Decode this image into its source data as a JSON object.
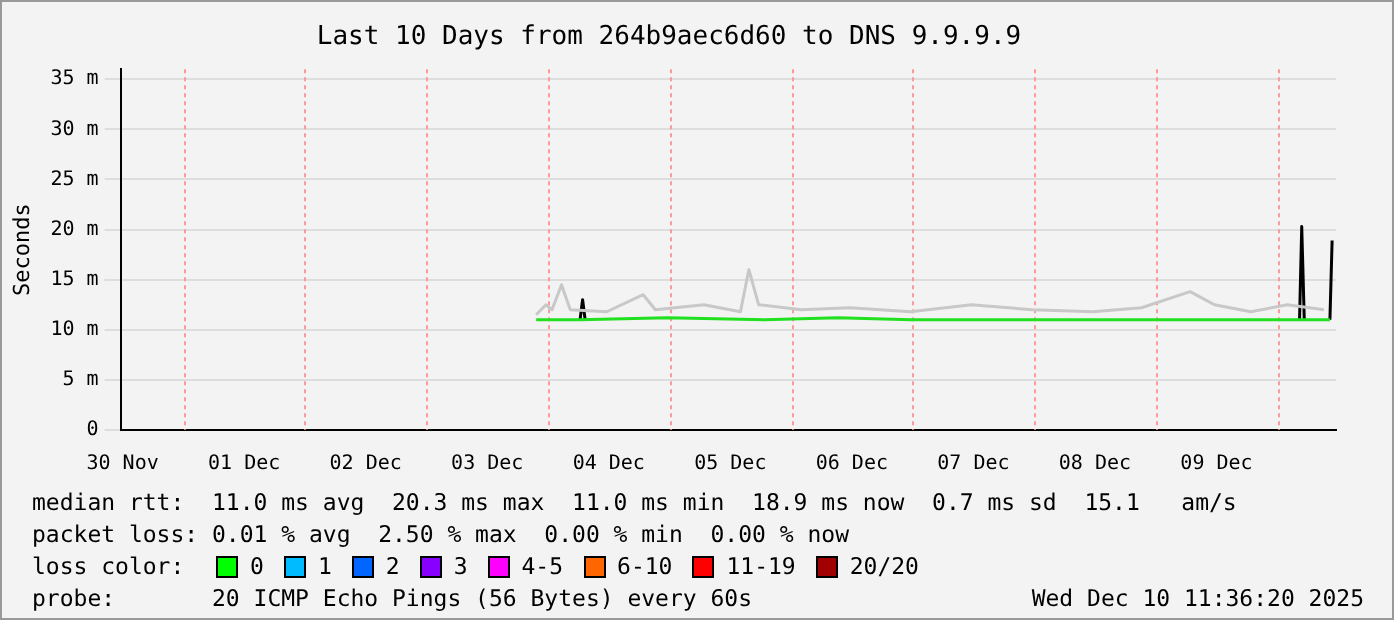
{
  "chart_data": {
    "type": "line",
    "title": "Last 10 Days from 264b9aec6d60 to DNS 9.9.9.9",
    "ylabel": "Seconds",
    "xlim": [
      "2025-11-30T11:36",
      "2025-12-10T11:36"
    ],
    "xticks": [
      {
        "value": "2025-11-30T12:00",
        "label": "30 Nov"
      },
      {
        "value": "2025-12-01T12:00",
        "label": "01 Dec"
      },
      {
        "value": "2025-12-02T12:00",
        "label": "02 Dec"
      },
      {
        "value": "2025-12-03T12:00",
        "label": "03 Dec"
      },
      {
        "value": "2025-12-04T12:00",
        "label": "04 Dec"
      },
      {
        "value": "2025-12-05T12:00",
        "label": "05 Dec"
      },
      {
        "value": "2025-12-06T12:00",
        "label": "06 Dec"
      },
      {
        "value": "2025-12-07T12:00",
        "label": "07 Dec"
      },
      {
        "value": "2025-12-08T12:00",
        "label": "08 Dec"
      },
      {
        "value": "2025-12-09T12:00",
        "label": "09 Dec"
      }
    ],
    "ylim": [
      0,
      36
    ],
    "yticks": [
      0,
      {
        "value": 5,
        "label": "5 m"
      },
      {
        "value": 10,
        "label": "10 m"
      },
      {
        "value": 15,
        "label": "15 m"
      },
      {
        "value": 20,
        "label": "20 m"
      },
      {
        "value": 25,
        "label": "25 m"
      },
      {
        "value": 30,
        "label": "30 m"
      },
      {
        "value": 35,
        "label": "35 m"
      }
    ],
    "grid": "y",
    "legend": false,
    "marker": "none",
    "line_style": "solid",
    "ref_lines": [
      {
        "axis": "x",
        "value": "2025-12-01T00:00",
        "color": "#ff9999",
        "line_style": "dotted"
      },
      {
        "axis": "x",
        "value": "2025-12-02T00:00",
        "color": "#ff9999",
        "line_style": "dotted"
      },
      {
        "axis": "x",
        "value": "2025-12-03T00:00",
        "color": "#ff9999",
        "line_style": "dotted"
      },
      {
        "axis": "x",
        "value": "2025-12-04T00:00",
        "color": "#ff9999",
        "line_style": "dotted"
      },
      {
        "axis": "x",
        "value": "2025-12-05T00:00",
        "color": "#ff9999",
        "line_style": "dotted"
      },
      {
        "axis": "x",
        "value": "2025-12-06T00:00",
        "color": "#ff9999",
        "line_style": "dotted"
      },
      {
        "axis": "x",
        "value": "2025-12-07T00:00",
        "color": "#ff9999",
        "line_style": "dotted"
      },
      {
        "axis": "x",
        "value": "2025-12-08T00:00",
        "color": "#ff9999",
        "line_style": "dotted"
      },
      {
        "axis": "x",
        "value": "2025-12-09T00:00",
        "color": "#ff9999",
        "line_style": "dotted"
      },
      {
        "axis": "x",
        "value": "2025-12-10T00:00",
        "color": "#ff9999",
        "line_style": "dotted"
      }
    ],
    "series": [
      {
        "color": "#c8c8c8",
        "x": [
          "2025-12-03T21:40",
          "2025-12-03T23:36",
          "2025-12-04T00:48",
          "2025-12-04T02:40",
          "2025-12-04T04:24",
          "2025-12-04T11:36",
          "2025-12-04T18:48",
          "2025-12-04T21:12",
          "2025-12-05T06:48",
          "2025-12-05T14:00",
          "2025-12-05T15:40",
          "2025-12-05T17:36",
          "2025-12-06T02:00",
          "2025-12-06T11:36",
          "2025-12-06T23:36",
          "2025-12-07T11:36",
          "2025-12-07T23:36",
          "2025-12-08T11:36",
          "2025-12-08T21:12",
          "2025-12-09T06:48",
          "2025-12-09T11:36",
          "2025-12-09T18:48",
          "2025-12-10T02:00",
          "2025-12-10T09:12"
        ],
        "values": [
          11.5,
          12.5,
          12,
          14.5,
          12,
          11.8,
          13.5,
          12,
          12.5,
          11.8,
          16,
          12.5,
          12,
          12.2,
          11.8,
          12.5,
          12,
          11.8,
          12.2,
          13.8,
          12.5,
          11.8,
          12.5,
          12
        ]
      },
      {
        "color": "#20e020",
        "x": [
          "2025-12-03T21:40",
          "2025-12-04T06:20",
          "2025-12-04T23:36",
          "2025-12-05T18:48",
          "2025-12-06T09:12",
          "2025-12-06T23:36",
          "2025-12-07T16:24",
          "2025-12-08T11:36",
          "2025-12-09T06:48",
          "2025-12-09T23:36",
          "2025-12-10T04:24",
          "2025-12-10T09:12",
          "2025-12-10T10:24"
        ],
        "values": [
          11,
          11,
          11.2,
          11,
          11.2,
          11,
          11,
          11,
          11,
          11,
          11,
          11,
          11
        ]
      },
      {
        "color": "#000000",
        "x": [
          "2025-12-04T06:20",
          "2025-12-04T06:50",
          "2025-12-04T07:20",
          "2025-12-07T00:00",
          "2025-12-10T04:24",
          "2025-12-10T04:50",
          "2025-12-10T05:20",
          "2025-12-10T08:00",
          "2025-12-10T10:24",
          "2025-12-10T10:50"
        ],
        "values": [
          11,
          13,
          11,
          null,
          11,
          20.3,
          11,
          null,
          11,
          18.9
        ]
      }
    ],
    "annotations": [
      "median rtt:  11.0 ms avg  20.3 ms max  11.0 ms min  18.9 ms now  0.7 ms sd  15.1   am/s",
      "packet loss: 0.01 % avg  2.50 % max  0.00 % min  0.00 % now",
      "loss color:",
      "0",
      "1",
      "2",
      "3",
      "4-5",
      "6-10",
      "11-19",
      "20/20",
      "probe:       20 ICMP Echo Pings (56 Bytes) every 60s",
      "Wed Dec 10 11:36:20 2025"
    ]
  }
}
